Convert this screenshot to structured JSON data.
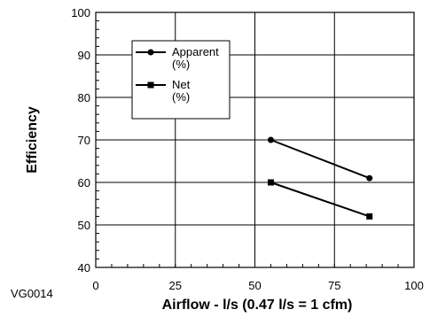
{
  "chart_data": {
    "type": "line",
    "xlabel": "Airflow - l/s (0.47 l/s = 1 cfm)",
    "ylabel": "Efficiency",
    "xlim": [
      0,
      100
    ],
    "ylim": [
      40,
      100
    ],
    "x_ticks": [
      "0",
      "25",
      "50",
      "75",
      "100"
    ],
    "y_ticks": [
      "40",
      "50",
      "60",
      "70",
      "80",
      "90",
      "100"
    ],
    "grid": true,
    "legend_position": "top-left",
    "series": [
      {
        "name": "Apparent",
        "unit": "(%)",
        "marker": "circle",
        "color": "#000000",
        "x": [
          55,
          86
        ],
        "y": [
          70,
          61
        ]
      },
      {
        "name": "Net",
        "unit": "(%)",
        "marker": "square",
        "color": "#000000",
        "x": [
          55,
          86
        ],
        "y": [
          60,
          52
        ]
      }
    ]
  },
  "figure_code": "VG0014"
}
